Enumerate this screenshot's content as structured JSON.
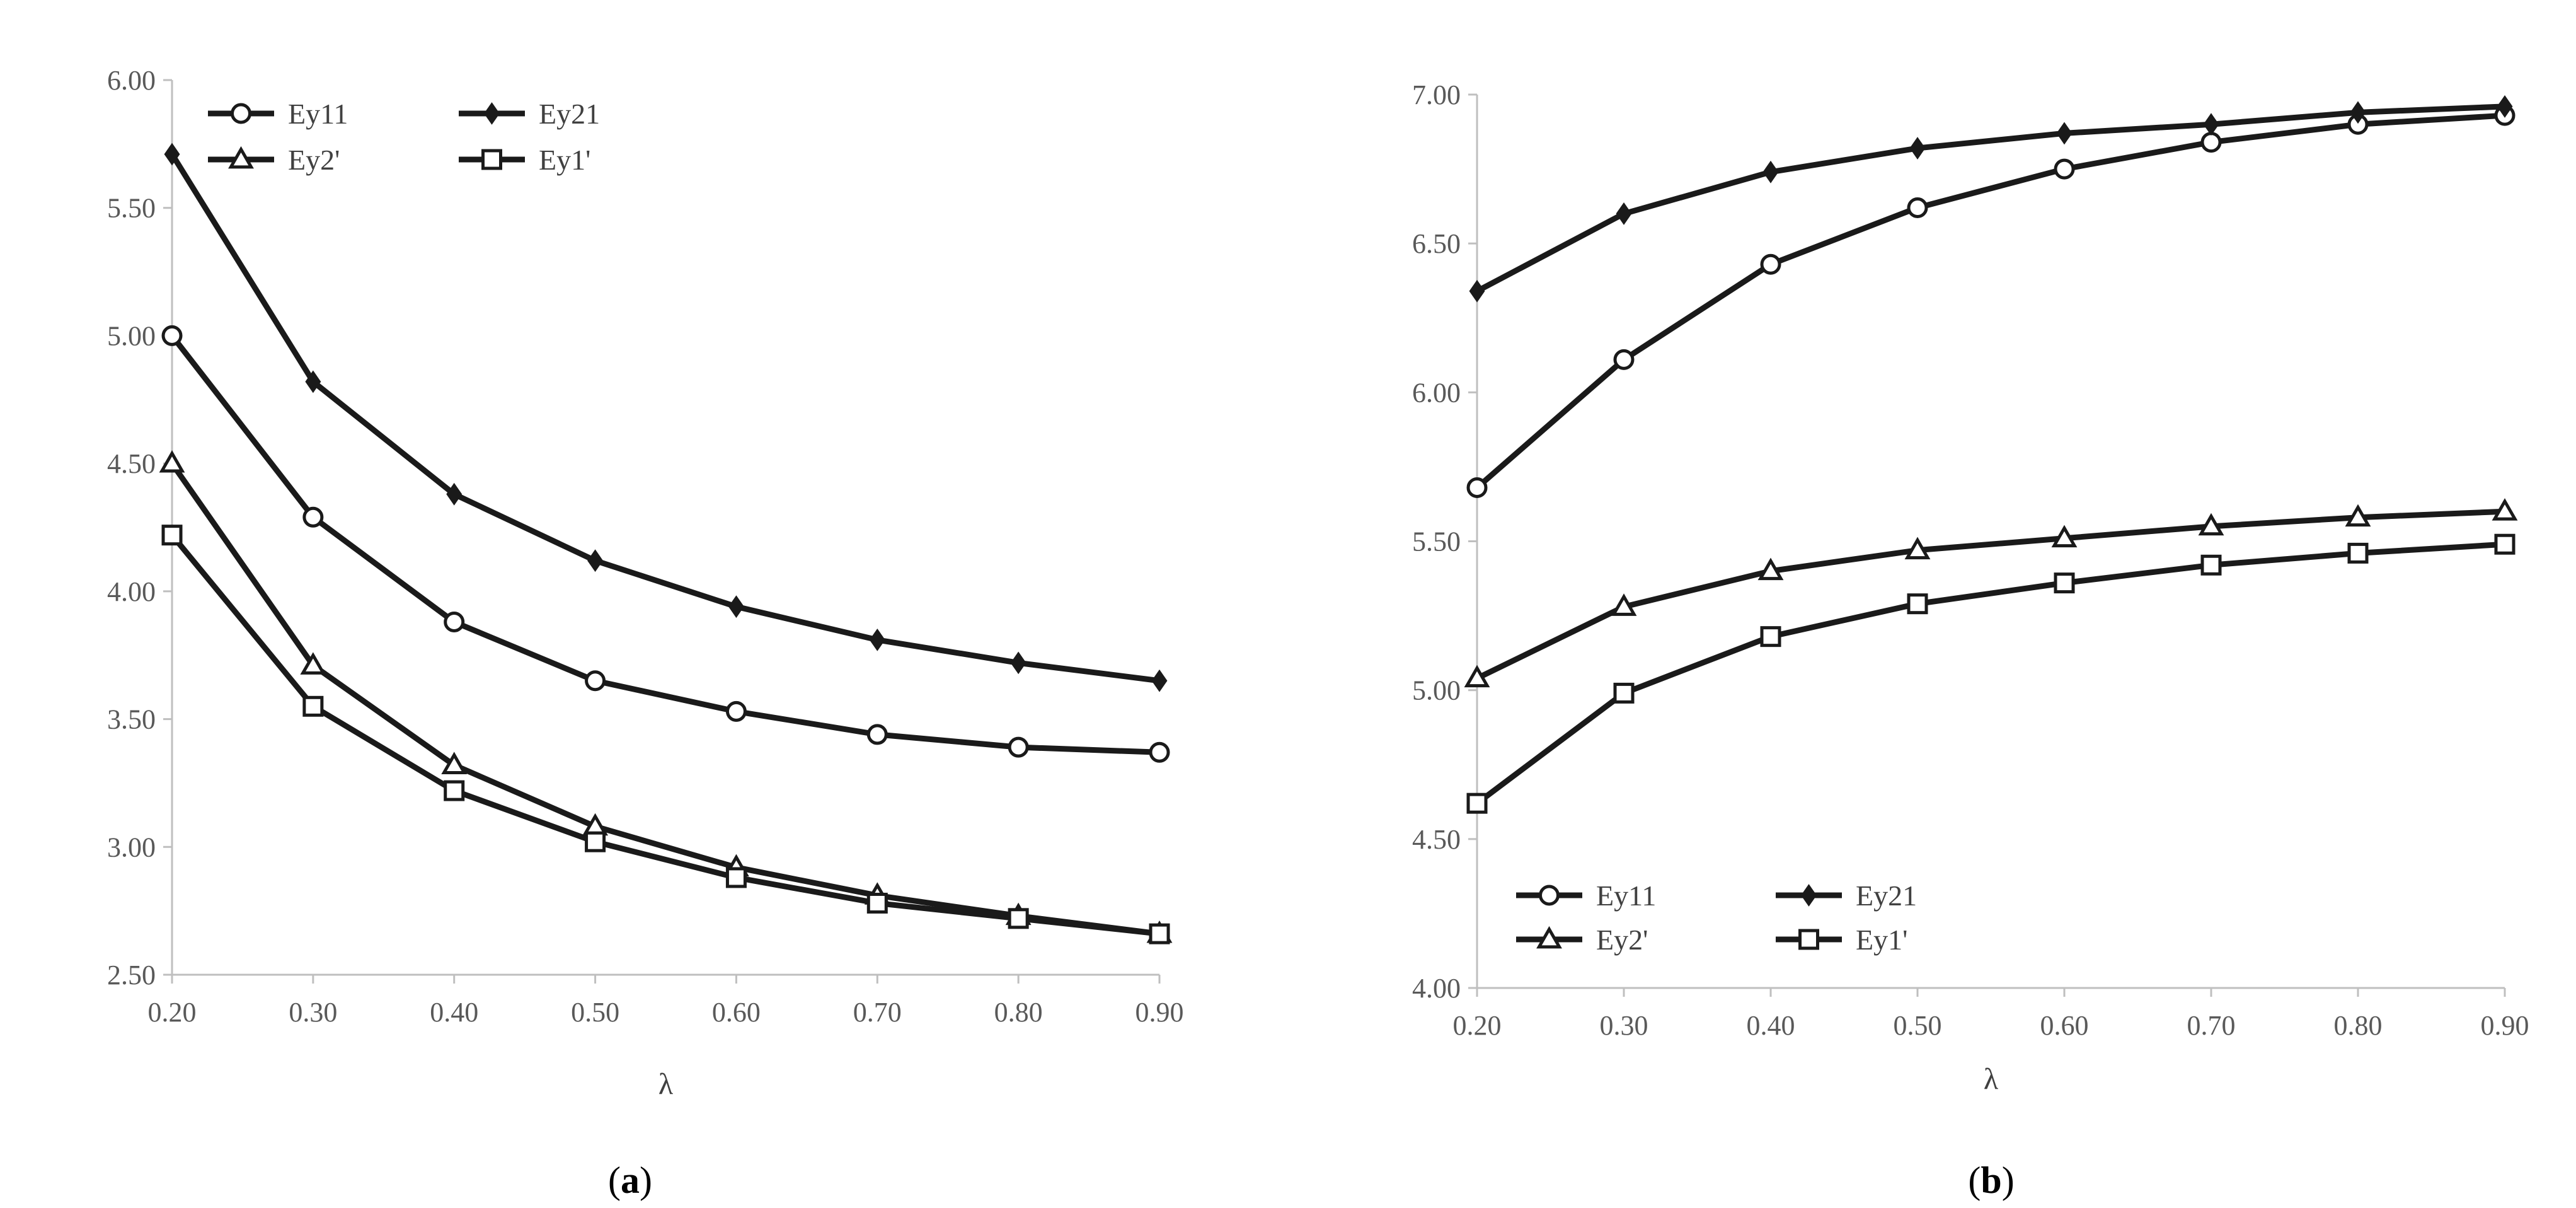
{
  "chart_data": [
    {
      "type": "line",
      "panel": "a",
      "caption_open": "(",
      "caption_letter": "a",
      "caption_close": ")",
      "xlabel": "λ",
      "ylabel": "",
      "x": [
        0.2,
        0.3,
        0.4,
        0.5,
        0.6,
        0.7,
        0.8,
        0.9
      ],
      "x_tick_labels": [
        "0.20",
        "0.30",
        "0.40",
        "0.50",
        "0.60",
        "0.70",
        "0.80",
        "0.90"
      ],
      "xlim": [
        0.2,
        0.9
      ],
      "ylim": [
        2.5,
        6.0
      ],
      "y_ticks": [
        2.5,
        3.0,
        3.5,
        4.0,
        4.5,
        5.0,
        5.5,
        6.0
      ],
      "y_tick_labels": [
        "2.50",
        "3.00",
        "3.50",
        "4.00",
        "4.50",
        "5.00",
        "5.50",
        "6.00"
      ],
      "grid": false,
      "legend_position": "top-left",
      "series": [
        {
          "name": "Ey11",
          "marker": "circle",
          "values": [
            5.0,
            4.29,
            3.88,
            3.65,
            3.53,
            3.44,
            3.39,
            3.37
          ]
        },
        {
          "name": "Ey21",
          "marker": "diamond",
          "values": [
            5.71,
            4.82,
            4.38,
            4.12,
            3.94,
            3.81,
            3.72,
            3.65
          ]
        },
        {
          "name": "Ey2'",
          "marker": "triangle",
          "values": [
            4.5,
            3.71,
            3.32,
            3.08,
            2.92,
            2.81,
            2.73,
            2.66
          ]
        },
        {
          "name": "Ey1'",
          "marker": "square",
          "values": [
            4.22,
            3.55,
            3.22,
            3.02,
            2.88,
            2.78,
            2.72,
            2.66
          ]
        }
      ]
    },
    {
      "type": "line",
      "panel": "b",
      "caption_open": "(",
      "caption_letter": "b",
      "caption_close": ")",
      "xlabel": "λ",
      "ylabel": "",
      "x": [
        0.2,
        0.3,
        0.4,
        0.5,
        0.6,
        0.7,
        0.8,
        0.9
      ],
      "x_tick_labels": [
        "0.20",
        "0.30",
        "0.40",
        "0.50",
        "0.60",
        "0.70",
        "0.80",
        "0.90"
      ],
      "xlim": [
        0.2,
        0.9
      ],
      "ylim": [
        4.0,
        7.0
      ],
      "y_ticks": [
        4.0,
        4.5,
        5.0,
        5.5,
        6.0,
        6.5,
        7.0
      ],
      "y_tick_labels": [
        "4.00",
        "4.50",
        "5.00",
        "5.50",
        "6.00",
        "6.50",
        "7.00"
      ],
      "grid": false,
      "legend_position": "bottom-left",
      "series": [
        {
          "name": "Ey11",
          "marker": "circle",
          "values": [
            5.68,
            6.11,
            6.43,
            6.62,
            6.75,
            6.84,
            6.9,
            6.93
          ]
        },
        {
          "name": "Ey21",
          "marker": "diamond",
          "values": [
            6.34,
            6.6,
            6.74,
            6.82,
            6.87,
            6.9,
            6.94,
            6.96
          ]
        },
        {
          "name": "Ey2'",
          "marker": "triangle",
          "values": [
            5.04,
            5.28,
            5.4,
            5.47,
            5.51,
            5.55,
            5.58,
            5.6
          ]
        },
        {
          "name": "Ey1'",
          "marker": "square",
          "values": [
            4.62,
            4.99,
            5.18,
            5.29,
            5.36,
            5.42,
            5.46,
            5.49
          ]
        }
      ]
    }
  ],
  "colors": {
    "line": "#1a1a1a",
    "axis": "#bfbfbf",
    "tick_text": "#595959"
  }
}
